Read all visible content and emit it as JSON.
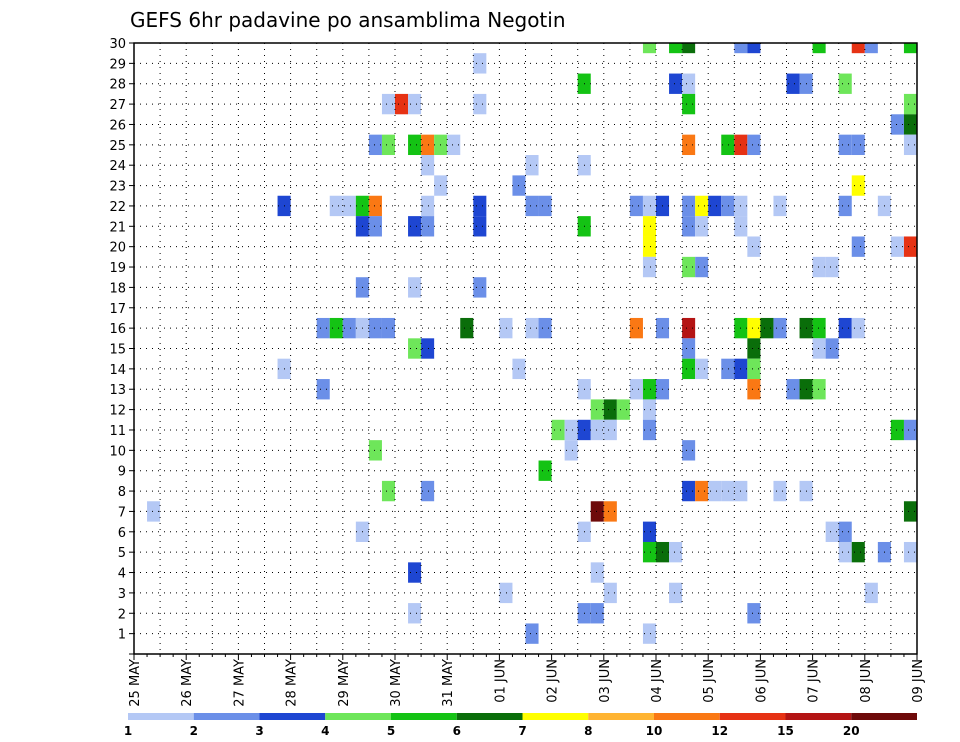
{
  "chart_data": {
    "type": "heatmap",
    "title": "GEFS 6hr padavine po ansamblima Negotin",
    "x_tick_labels": [
      "25 MAY",
      "26 MAY",
      "27 MAY",
      "28 MAY",
      "29 MAY",
      "30 MAY",
      "31 MAY",
      "01 JUN",
      "02 JUN",
      "03 JUN",
      "04 JUN",
      "05 JUN",
      "06 JUN",
      "07 JUN",
      "08 JUN",
      "09 JUN"
    ],
    "y_tick_labels": [
      "1",
      "2",
      "3",
      "4",
      "5",
      "6",
      "7",
      "8",
      "9",
      "10",
      "11",
      "12",
      "13",
      "14",
      "15",
      "16",
      "17",
      "18",
      "19",
      "20",
      "21",
      "22",
      "23",
      "24",
      "25",
      "26",
      "27",
      "28",
      "29",
      "30"
    ],
    "xlim": [
      0,
      60
    ],
    "ylim": [
      0,
      30
    ],
    "grid": true,
    "legend_levels": [
      "1",
      "2",
      "3",
      "4",
      "5",
      "6",
      "7",
      "8",
      "10",
      "12",
      "15",
      "20"
    ],
    "legend_colors": [
      "#b4c8f5",
      "#6b8fe8",
      "#1e46d2",
      "#6ee65a",
      "#14c314",
      "#0a6e0a",
      "#ffff00",
      "#ffb432",
      "#fa7814",
      "#e63214",
      "#b41414",
      "#6e0a0a"
    ],
    "cells": [
      [
        40,
        30,
        3
      ],
      [
        42,
        30,
        4
      ],
      [
        43,
        30,
        5
      ],
      [
        47,
        30,
        1
      ],
      [
        48,
        30,
        2
      ],
      [
        53,
        30,
        4
      ],
      [
        56,
        30,
        9
      ],
      [
        57,
        30,
        1
      ],
      [
        60,
        30,
        4
      ],
      [
        27,
        29,
        0
      ],
      [
        35,
        28,
        4
      ],
      [
        42,
        28,
        2
      ],
      [
        43,
        28,
        0
      ],
      [
        51,
        28,
        2
      ],
      [
        52,
        28,
        1
      ],
      [
        55,
        28,
        3
      ],
      [
        20,
        27,
        0
      ],
      [
        21,
        27,
        9
      ],
      [
        22,
        27,
        0
      ],
      [
        27,
        27,
        0
      ],
      [
        43,
        27,
        4
      ],
      [
        60,
        27,
        3
      ],
      [
        59,
        26,
        1
      ],
      [
        60,
        26,
        5
      ],
      [
        19,
        25,
        1
      ],
      [
        20,
        25,
        3
      ],
      [
        22,
        25,
        4
      ],
      [
        23,
        25,
        8
      ],
      [
        24,
        25,
        3
      ],
      [
        25,
        25,
        0
      ],
      [
        43,
        25,
        8
      ],
      [
        46,
        25,
        4
      ],
      [
        47,
        25,
        9
      ],
      [
        48,
        25,
        1
      ],
      [
        55,
        25,
        1
      ],
      [
        56,
        25,
        1
      ],
      [
        60,
        25,
        0
      ],
      [
        23,
        24,
        0
      ],
      [
        31,
        24,
        0
      ],
      [
        35,
        24,
        0
      ],
      [
        24,
        23,
        0
      ],
      [
        30,
        23,
        1
      ],
      [
        56,
        23,
        6
      ],
      [
        12,
        22,
        2
      ],
      [
        16,
        22,
        0
      ],
      [
        17,
        22,
        0
      ],
      [
        18,
        22,
        4
      ],
      [
        19,
        22,
        8
      ],
      [
        23,
        22,
        0
      ],
      [
        27,
        22,
        2
      ],
      [
        31,
        22,
        1
      ],
      [
        32,
        22,
        1
      ],
      [
        39,
        22,
        1
      ],
      [
        40,
        22,
        0
      ],
      [
        41,
        22,
        2
      ],
      [
        43,
        22,
        1
      ],
      [
        44,
        22,
        6
      ],
      [
        45,
        22,
        2
      ],
      [
        46,
        22,
        1
      ],
      [
        47,
        22,
        0
      ],
      [
        50,
        22,
        0
      ],
      [
        55,
        22,
        1
      ],
      [
        58,
        22,
        0
      ],
      [
        18,
        21,
        2
      ],
      [
        19,
        21,
        1
      ],
      [
        22,
        21,
        2
      ],
      [
        23,
        21,
        1
      ],
      [
        27,
        21,
        2
      ],
      [
        35,
        21,
        4
      ],
      [
        40,
        21,
        6
      ],
      [
        43,
        21,
        1
      ],
      [
        44,
        21,
        0
      ],
      [
        47,
        21,
        0
      ],
      [
        40,
        20,
        6
      ],
      [
        48,
        20,
        0
      ],
      [
        56,
        20,
        1
      ],
      [
        59,
        20,
        0
      ],
      [
        60,
        20,
        9
      ],
      [
        40,
        19,
        0
      ],
      [
        43,
        19,
        3
      ],
      [
        44,
        19,
        1
      ],
      [
        53,
        19,
        0
      ],
      [
        54,
        19,
        0
      ],
      [
        18,
        18,
        1
      ],
      [
        22,
        18,
        0
      ],
      [
        27,
        18,
        1
      ],
      [
        15,
        16,
        1
      ],
      [
        16,
        16,
        4
      ],
      [
        17,
        16,
        1
      ],
      [
        18,
        16,
        0
      ],
      [
        19,
        16,
        1
      ],
      [
        20,
        16,
        1
      ],
      [
        26,
        16,
        5
      ],
      [
        29,
        16,
        0
      ],
      [
        31,
        16,
        0
      ],
      [
        32,
        16,
        1
      ],
      [
        39,
        16,
        8
      ],
      [
        41,
        16,
        1
      ],
      [
        43,
        16,
        10
      ],
      [
        47,
        16,
        4
      ],
      [
        48,
        16,
        6
      ],
      [
        49,
        16,
        5
      ],
      [
        50,
        16,
        1
      ],
      [
        52,
        16,
        5
      ],
      [
        53,
        16,
        4
      ],
      [
        55,
        16,
        2
      ],
      [
        56,
        16,
        0
      ],
      [
        22,
        15,
        3
      ],
      [
        23,
        15,
        2
      ],
      [
        43,
        15,
        1
      ],
      [
        48,
        15,
        5
      ],
      [
        53,
        15,
        0
      ],
      [
        54,
        15,
        1
      ],
      [
        12,
        14,
        0
      ],
      [
        30,
        14,
        0
      ],
      [
        43,
        14,
        4
      ],
      [
        44,
        14,
        0
      ],
      [
        46,
        14,
        1
      ],
      [
        47,
        14,
        2
      ],
      [
        48,
        14,
        3
      ],
      [
        15,
        13,
        1
      ],
      [
        35,
        13,
        0
      ],
      [
        39,
        13,
        0
      ],
      [
        40,
        13,
        4
      ],
      [
        41,
        13,
        1
      ],
      [
        48,
        13,
        8
      ],
      [
        51,
        13,
        1
      ],
      [
        52,
        13,
        5
      ],
      [
        53,
        13,
        3
      ],
      [
        36,
        12,
        3
      ],
      [
        37,
        12,
        5
      ],
      [
        38,
        12,
        3
      ],
      [
        40,
        12,
        0
      ],
      [
        33,
        11,
        3
      ],
      [
        34,
        11,
        0
      ],
      [
        35,
        11,
        2
      ],
      [
        36,
        11,
        0
      ],
      [
        37,
        11,
        0
      ],
      [
        40,
        11,
        1
      ],
      [
        59,
        11,
        4
      ],
      [
        60,
        11,
        1
      ],
      [
        19,
        10,
        3
      ],
      [
        34,
        10,
        0
      ],
      [
        43,
        10,
        1
      ],
      [
        32,
        9,
        4
      ],
      [
        20,
        8,
        3
      ],
      [
        23,
        8,
        1
      ],
      [
        43,
        8,
        2
      ],
      [
        44,
        8,
        8
      ],
      [
        45,
        8,
        0
      ],
      [
        46,
        8,
        0
      ],
      [
        47,
        8,
        0
      ],
      [
        50,
        8,
        0
      ],
      [
        52,
        8,
        0
      ],
      [
        2,
        7,
        0
      ],
      [
        36,
        7,
        11
      ],
      [
        37,
        7,
        8
      ],
      [
        60,
        7,
        5
      ],
      [
        18,
        6,
        0
      ],
      [
        35,
        6,
        0
      ],
      [
        40,
        6,
        2
      ],
      [
        54,
        6,
        0
      ],
      [
        55,
        6,
        1
      ],
      [
        40,
        5,
        4
      ],
      [
        41,
        5,
        5
      ],
      [
        42,
        5,
        0
      ],
      [
        55,
        5,
        0
      ],
      [
        56,
        5,
        5
      ],
      [
        58,
        5,
        1
      ],
      [
        60,
        5,
        0
      ],
      [
        22,
        4,
        2
      ],
      [
        36,
        4,
        0
      ],
      [
        29,
        3,
        0
      ],
      [
        37,
        3,
        0
      ],
      [
        42,
        3,
        0
      ],
      [
        57,
        3,
        0
      ],
      [
        22,
        2,
        0
      ],
      [
        35,
        2,
        1
      ],
      [
        36,
        2,
        1
      ],
      [
        48,
        2,
        1
      ],
      [
        31,
        1,
        1
      ],
      [
        40,
        1,
        0
      ]
    ]
  }
}
